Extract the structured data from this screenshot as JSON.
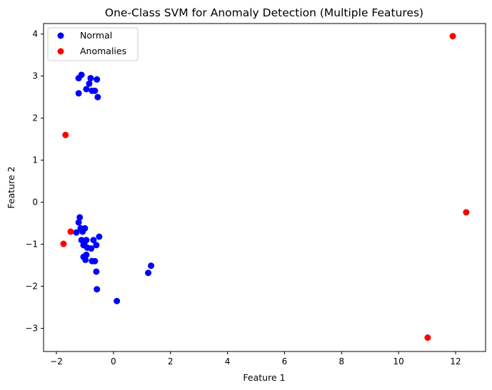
{
  "chart_data": {
    "type": "scatter",
    "title": "One-Class SVM for Anomaly Detection (Multiple Features)",
    "xlabel": "Feature 1",
    "ylabel": "Feature 2",
    "xlim": [
      -2.45,
      13.05
    ],
    "ylim": [
      -3.55,
      4.25
    ],
    "xticks": [
      -2,
      0,
      2,
      4,
      6,
      8,
      10,
      12
    ],
    "yticks": [
      -3,
      -2,
      -1,
      0,
      1,
      2,
      3,
      4
    ],
    "grid": false,
    "legend": "top-left",
    "series": [
      {
        "name": "Normal",
        "color": "#0000ff",
        "points": [
          [
            -1.22,
            2.95
          ],
          [
            -1.12,
            3.03
          ],
          [
            -0.8,
            2.95
          ],
          [
            -0.58,
            2.92
          ],
          [
            -0.85,
            2.82
          ],
          [
            -0.95,
            2.69
          ],
          [
            -0.75,
            2.65
          ],
          [
            -0.65,
            2.65
          ],
          [
            -1.22,
            2.59
          ],
          [
            -0.55,
            2.5
          ],
          [
            -1.18,
            -0.36
          ],
          [
            -1.22,
            -0.48
          ],
          [
            -1.15,
            -0.62
          ],
          [
            -1.0,
            -0.62
          ],
          [
            -1.3,
            -0.72
          ],
          [
            -1.08,
            -0.7
          ],
          [
            -0.5,
            -0.82
          ],
          [
            -1.12,
            -0.9
          ],
          [
            -0.95,
            -0.9
          ],
          [
            -0.7,
            -0.9
          ],
          [
            -1.05,
            -1.02
          ],
          [
            -1.02,
            -0.98
          ],
          [
            -0.92,
            -1.08
          ],
          [
            -0.78,
            -1.1
          ],
          [
            -0.6,
            -1.02
          ],
          [
            -0.95,
            -1.25
          ],
          [
            -1.05,
            -1.3
          ],
          [
            -0.98,
            -1.37
          ],
          [
            -0.75,
            -1.4
          ],
          [
            -0.65,
            -1.4
          ],
          [
            -0.6,
            -1.65
          ],
          [
            -0.58,
            -2.07
          ],
          [
            0.12,
            -2.35
          ],
          [
            1.22,
            -1.68
          ],
          [
            1.32,
            -1.51
          ]
        ]
      },
      {
        "name": "Anomalies",
        "color": "#ff0000",
        "points": [
          [
            -1.68,
            1.6
          ],
          [
            -1.5,
            -0.7
          ],
          [
            -1.75,
            -0.99
          ],
          [
            11.9,
            3.95
          ],
          [
            12.37,
            -0.24
          ],
          [
            11.02,
            -3.22
          ]
        ]
      }
    ]
  }
}
